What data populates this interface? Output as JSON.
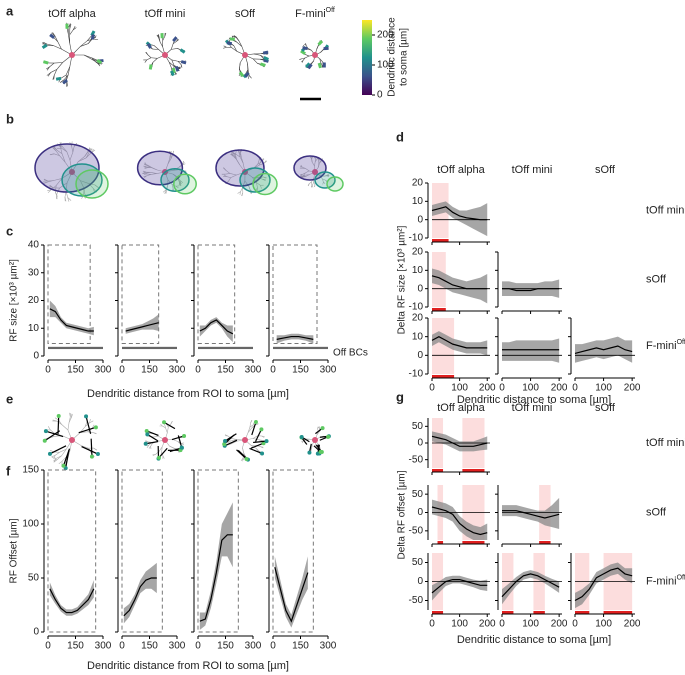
{
  "panel_labels": [
    "a",
    "b",
    "c",
    "d",
    "e",
    "f",
    "g"
  ],
  "cell_types": [
    "tOff alpha",
    "tOff mini",
    "sOff",
    "F-mini"
  ],
  "superscript": "Off",
  "colorbar": {
    "label": [
      "Dendritic distance",
      "to soma [µm]"
    ],
    "ticks": [
      0,
      100,
      200
    ],
    "lim": [
      0,
      250
    ]
  },
  "c": {
    "ylabel": "RF size [×10³ µm²]",
    "xlabel": "Dendritic distance from ROI to soma [µm]",
    "off_bcs": "Off BCs",
    "off_bcs_band": [
      2.5,
      3.3
    ],
    "xlim": [
      0,
      300
    ],
    "ylim": [
      0,
      40
    ],
    "xticks": [
      0,
      150,
      300
    ],
    "yticks": [
      0,
      10,
      20,
      30,
      40
    ],
    "box_y": [
      4.5,
      40
    ],
    "subplots": [
      {
        "box_x": [
          0,
          230
        ],
        "x": [
          10,
          40,
          70,
          100,
          130,
          160,
          190,
          220,
          250
        ],
        "mean": [
          17,
          16,
          13,
          11,
          10.5,
          10,
          9.5,
          9,
          9
        ],
        "lower": [
          14,
          14,
          12,
          10,
          9.5,
          9,
          8.5,
          8,
          7.5
        ],
        "upper": [
          20,
          18,
          14,
          12,
          11.5,
          11,
          10.5,
          10,
          10.5
        ]
      },
      {
        "box_x": [
          0,
          200
        ],
        "x": [
          20,
          50,
          80,
          110,
          140,
          170,
          200
        ],
        "mean": [
          9,
          9.5,
          10,
          10.5,
          11,
          11.5,
          12
        ],
        "lower": [
          8,
          8.5,
          9,
          9.5,
          9.5,
          9.5,
          9
        ],
        "upper": [
          10,
          10.5,
          11,
          11.5,
          12.5,
          13.5,
          15
        ]
      },
      {
        "box_x": [
          0,
          200
        ],
        "x": [
          10,
          40,
          70,
          100,
          130,
          160,
          190
        ],
        "mean": [
          9,
          10,
          12,
          13,
          11,
          9,
          8
        ],
        "lower": [
          7,
          9,
          11,
          12,
          10,
          7,
          5
        ],
        "upper": [
          11,
          11,
          13,
          14,
          12,
          11,
          11
        ]
      },
      {
        "box_x": [
          0,
          240
        ],
        "x": [
          20,
          60,
          100,
          140,
          180,
          220
        ],
        "mean": [
          6,
          6.5,
          7,
          7,
          6.5,
          6
        ],
        "lower": [
          4.5,
          5.5,
          6,
          6,
          5.5,
          4.5
        ],
        "upper": [
          7.5,
          7.5,
          8,
          8,
          7.5,
          7.5
        ]
      }
    ]
  },
  "d": {
    "ylabel": "Delta RF size [×10³ µm²]",
    "xlabel": "Dendritic distance to soma [µm]",
    "zero_line": true,
    "xlim": [
      0,
      210
    ],
    "ylim": [
      -10,
      20
    ],
    "xticks": [
      0,
      100,
      200
    ],
    "yticks": [
      -10,
      0,
      10,
      20
    ],
    "rows": [
      [
        {
          "x": [
            0,
            25,
            50,
            75,
            100,
            125,
            150,
            175,
            200
          ],
          "mean": [
            5,
            6,
            7,
            4,
            2,
            1,
            0.5,
            0,
            0
          ],
          "lower": [
            2,
            3,
            4,
            1,
            -1,
            -3,
            -5,
            -7,
            -9
          ],
          "upper": [
            8,
            9,
            10,
            7,
            5,
            5,
            6,
            7,
            9
          ],
          "sig": [
            [
              0,
              60
            ]
          ]
        }
      ],
      [
        {
          "x": [
            0,
            25,
            50,
            75,
            100,
            125,
            150,
            175,
            200
          ],
          "mean": [
            7,
            6,
            4,
            2,
            1,
            0,
            0,
            0,
            0
          ],
          "lower": [
            3,
            2,
            0,
            -2,
            -3,
            -4,
            -5,
            -6,
            -8
          ],
          "upper": [
            11,
            10,
            8,
            6,
            5,
            4,
            5,
            6,
            8
          ],
          "sig": [
            [
              0,
              50
            ]
          ]
        },
        {
          "x": [
            0,
            25,
            50,
            75,
            100,
            125,
            150,
            175,
            200
          ],
          "mean": [
            0,
            0,
            -1,
            -1,
            -1,
            0,
            0,
            0,
            0
          ],
          "lower": [
            -4,
            -4,
            -4,
            -4,
            -4,
            -4,
            -4,
            -4,
            -5
          ],
          "upper": [
            4,
            4,
            3,
            3,
            3,
            3,
            4,
            4,
            5
          ],
          "sig": []
        }
      ],
      [
        {
          "x": [
            0,
            25,
            50,
            75,
            100,
            125,
            150,
            175,
            200
          ],
          "mean": [
            8,
            10,
            8,
            6,
            5,
            4,
            4,
            4,
            4
          ],
          "lower": [
            5,
            7,
            5,
            3,
            2,
            1,
            1,
            1,
            0
          ],
          "upper": [
            11,
            13,
            11,
            9,
            8,
            7,
            7,
            7,
            8
          ],
          "sig": [
            [
              0,
              80
            ]
          ]
        },
        {
          "x": [
            0,
            25,
            50,
            75,
            100,
            125,
            150,
            175,
            200
          ],
          "mean": [
            3,
            3,
            3,
            3,
            3,
            3,
            3,
            3,
            3
          ],
          "lower": [
            -3,
            -3,
            -3,
            -3,
            -3,
            -3,
            -3,
            -3,
            -4
          ],
          "upper": [
            7,
            7,
            8,
            8,
            8,
            8,
            8,
            8,
            9
          ],
          "sig": []
        },
        {
          "x": [
            0,
            25,
            50,
            75,
            100,
            125,
            150,
            175,
            200
          ],
          "mean": [
            1,
            2,
            3,
            4,
            3,
            4,
            5,
            3,
            2
          ],
          "lower": [
            -4,
            -3,
            -2,
            -1,
            -2,
            -1,
            0,
            -2,
            -4
          ],
          "upper": [
            6,
            6,
            7,
            8,
            8,
            9,
            10,
            8,
            8
          ],
          "sig": []
        }
      ]
    ]
  },
  "f": {
    "ylabel": "RF Offset [µm]",
    "xlabel": "Dendritic distance from ROI to soma [µm]",
    "xlim": [
      0,
      300
    ],
    "ylim": [
      0,
      150
    ],
    "xticks": [
      0,
      150,
      300
    ],
    "yticks": [
      0,
      50,
      100,
      150
    ],
    "box_y": [
      0,
      150
    ],
    "subplots": [
      {
        "box_x": [
          0,
          260
        ],
        "x": [
          10,
          40,
          70,
          100,
          130,
          160,
          190,
          220,
          250
        ],
        "mean": [
          40,
          30,
          22,
          18,
          18,
          20,
          25,
          30,
          40
        ],
        "lower": [
          34,
          26,
          19,
          15,
          15,
          17,
          21,
          25,
          32
        ],
        "upper": [
          46,
          34,
          25,
          21,
          21,
          23,
          29,
          35,
          48
        ]
      },
      {
        "box_x": [
          0,
          220
        ],
        "x": [
          10,
          40,
          70,
          100,
          130,
          160,
          190
        ],
        "mean": [
          15,
          20,
          30,
          42,
          48,
          50,
          50
        ],
        "lower": [
          8,
          14,
          25,
          36,
          40,
          40,
          36
        ],
        "upper": [
          22,
          26,
          35,
          48,
          56,
          60,
          64
        ]
      },
      {
        "box_x": [
          0,
          220
        ],
        "x": [
          10,
          40,
          70,
          100,
          130,
          160,
          190
        ],
        "mean": [
          10,
          12,
          30,
          55,
          85,
          90,
          90
        ],
        "lower": [
          2,
          6,
          22,
          45,
          70,
          70,
          60
        ],
        "upper": [
          18,
          18,
          38,
          65,
          100,
          110,
          120
        ]
      },
      {
        "box_x": [
          0,
          220
        ],
        "x": [
          10,
          40,
          70,
          100,
          130,
          160,
          190
        ],
        "mean": [
          60,
          40,
          20,
          10,
          25,
          40,
          55
        ],
        "lower": [
          50,
          32,
          14,
          4,
          17,
          30,
          40
        ],
        "upper": [
          70,
          48,
          26,
          16,
          33,
          50,
          70
        ]
      }
    ]
  },
  "g": {
    "ylabel": "Delta RF offset [µm]",
    "xlabel": "Dendritic distance to soma [µm]",
    "zero_line": true,
    "xlim": [
      0,
      210
    ],
    "ylim": [
      -75,
      75
    ],
    "xticks": [
      0,
      100,
      200
    ],
    "yticks": [
      -50,
      0,
      50
    ],
    "rows": [
      [
        {
          "x": [
            0,
            25,
            50,
            75,
            100,
            125,
            150,
            175,
            200
          ],
          "mean": [
            20,
            15,
            10,
            0,
            -10,
            -10,
            -10,
            -5,
            0
          ],
          "lower": [
            5,
            0,
            -5,
            -15,
            -25,
            -25,
            -25,
            -22,
            -20
          ],
          "upper": [
            35,
            30,
            25,
            15,
            5,
            5,
            5,
            12,
            20
          ],
          "sig": [
            [
              0,
              40
            ],
            [
              110,
              190
            ]
          ]
        }
      ],
      [
        {
          "x": [
            0,
            25,
            50,
            75,
            100,
            125,
            150,
            175,
            200
          ],
          "mean": [
            15,
            10,
            5,
            -5,
            -30,
            -45,
            -55,
            -60,
            -55
          ],
          "lower": [
            -5,
            -10,
            -15,
            -25,
            -50,
            -65,
            -75,
            -75,
            -75
          ],
          "upper": [
            35,
            30,
            25,
            15,
            -10,
            -25,
            -35,
            -40,
            -30
          ],
          "sig": [
            [
              20,
              40
            ],
            [
              110,
              190
            ]
          ]
        },
        {
          "x": [
            0,
            25,
            50,
            75,
            100,
            125,
            150,
            175,
            200
          ],
          "mean": [
            5,
            5,
            5,
            0,
            -5,
            -10,
            -15,
            -10,
            -5
          ],
          "lower": [
            -10,
            -10,
            -10,
            -15,
            -20,
            -25,
            -35,
            -40,
            -45
          ],
          "upper": [
            20,
            20,
            20,
            15,
            10,
            5,
            5,
            20,
            40
          ],
          "sig": [
            [
              130,
              170
            ]
          ]
        }
      ],
      [
        {
          "x": [
            0,
            25,
            50,
            75,
            100,
            125,
            150,
            175,
            200
          ],
          "mean": [
            -30,
            -15,
            0,
            5,
            5,
            0,
            -5,
            -10,
            -10
          ],
          "lower": [
            -50,
            -30,
            -12,
            -5,
            -5,
            -10,
            -15,
            -22,
            -25
          ],
          "upper": [
            -10,
            0,
            12,
            15,
            15,
            10,
            5,
            2,
            5
          ],
          "sig": [
            [
              0,
              40
            ]
          ]
        },
        {
          "x": [
            0,
            25,
            50,
            75,
            100,
            125,
            150,
            175,
            200
          ],
          "mean": [
            -40,
            -20,
            0,
            15,
            20,
            15,
            5,
            -5,
            -15
          ],
          "lower": [
            -60,
            -35,
            -12,
            5,
            10,
            5,
            -5,
            -17,
            -30
          ],
          "upper": [
            -20,
            -5,
            12,
            25,
            30,
            25,
            15,
            7,
            0
          ],
          "sig": [
            [
              0,
              40
            ],
            [
              110,
              150
            ]
          ]
        },
        {
          "x": [
            0,
            25,
            50,
            75,
            100,
            125,
            150,
            175,
            200
          ],
          "mean": [
            -50,
            -40,
            -20,
            10,
            20,
            30,
            35,
            20,
            15
          ],
          "lower": [
            -70,
            -60,
            -35,
            -5,
            5,
            15,
            20,
            5,
            -5
          ],
          "upper": [
            -30,
            -20,
            -5,
            25,
            35,
            45,
            50,
            35,
            35
          ],
          "sig": [
            [
              0,
              50
            ],
            [
              100,
              200
            ]
          ]
        }
      ]
    ]
  }
}
